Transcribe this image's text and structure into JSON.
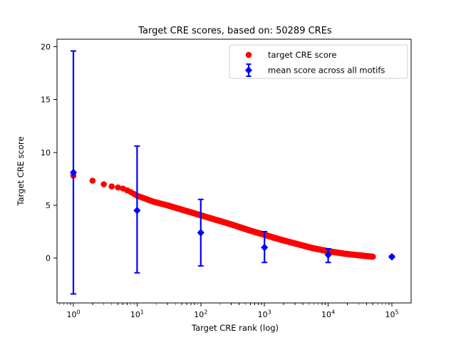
{
  "title": "Target CRE scores, based on: 50289 CREs",
  "chart_data": {
    "type": "scatter",
    "title": "Target CRE scores, based on: 50289 CREs",
    "xlabel": "Target CRE rank (log)",
    "ylabel": "Target CRE score",
    "x_scale": "log",
    "x_tick_exponents": [
      0,
      1,
      2,
      3,
      4,
      5
    ],
    "x_tick_base": "10",
    "y_ticks": [
      0,
      5,
      10,
      15,
      20
    ],
    "xlim_log10": [
      -0.257,
      5.3
    ],
    "ylim": [
      -4.3,
      20.7
    ],
    "grid": false,
    "legend_position": "upper center-right inset",
    "n_cres": 50289,
    "colors": {
      "target": "#ff0000",
      "mean": "#0000ff",
      "axis": "#000000",
      "legend_border": "#cccccc"
    },
    "series": [
      {
        "name": "target CRE score",
        "color": "#ff0000",
        "marker": "circle",
        "max_rank": 50289,
        "curve_points_log10": [
          [
            0.0,
            7.8
          ],
          [
            0.3,
            7.32
          ],
          [
            0.48,
            6.98
          ],
          [
            0.6,
            6.78
          ],
          [
            0.7,
            6.68
          ],
          [
            0.78,
            6.58
          ],
          [
            0.9,
            6.25
          ],
          [
            1.0,
            5.9
          ],
          [
            1.25,
            5.35
          ],
          [
            1.5,
            4.95
          ],
          [
            1.75,
            4.5
          ],
          [
            2.0,
            4.05
          ],
          [
            2.25,
            3.6
          ],
          [
            2.5,
            3.15
          ],
          [
            2.75,
            2.65
          ],
          [
            3.0,
            2.2
          ],
          [
            3.25,
            1.75
          ],
          [
            3.5,
            1.35
          ],
          [
            3.75,
            0.95
          ],
          [
            4.0,
            0.65
          ],
          [
            4.25,
            0.42
          ],
          [
            4.5,
            0.25
          ],
          [
            4.7,
            0.13
          ]
        ]
      },
      {
        "name": "mean score across all motifs",
        "color": "#0000ff",
        "marker": "diamond",
        "points": [
          {
            "rank": 1,
            "mean": 8.1,
            "err_low": -3.4,
            "err_high": 19.6
          },
          {
            "rank": 10,
            "mean": 4.5,
            "err_low": -1.4,
            "err_high": 10.6
          },
          {
            "rank": 100,
            "mean": 2.4,
            "err_low": -0.75,
            "err_high": 5.55
          },
          {
            "rank": 1000,
            "mean": 1.0,
            "err_low": -0.42,
            "err_high": 2.5
          },
          {
            "rank": 10000,
            "mean": 0.3,
            "err_low": -0.42,
            "err_high": 0.88
          },
          {
            "rank": 100000,
            "mean": 0.12,
            "err_low": 0.05,
            "err_high": 0.2
          }
        ]
      }
    ]
  }
}
